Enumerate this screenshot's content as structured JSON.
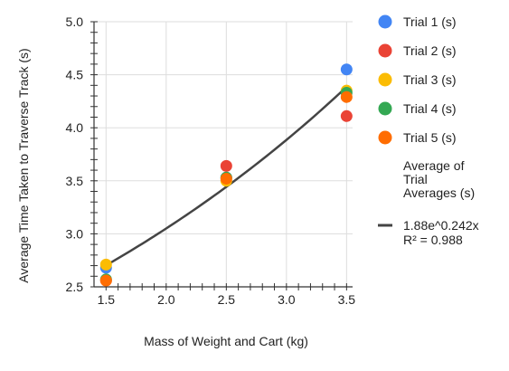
{
  "chart_data": {
    "type": "scatter",
    "title": "",
    "xlabel": "Mass of Weight and Cart (kg)",
    "ylabel": "Average Time Taken to Traverse Track (s)",
    "xlim": [
      1.4,
      3.55
    ],
    "ylim": [
      2.5,
      5.0
    ],
    "x_ticks": [
      "1.5",
      "2.0",
      "2.5",
      "3.0",
      "3.5"
    ],
    "y_ticks": [
      "2.5",
      "3.0",
      "3.5",
      "4.0",
      "4.5",
      "5.0"
    ],
    "grid": true,
    "legend_position": "right",
    "series": [
      {
        "name": "Trial 1 (s)",
        "color": "#4285F4",
        "points": [
          [
            1.5,
            2.68
          ],
          [
            2.5,
            3.53
          ],
          [
            3.5,
            4.55
          ]
        ]
      },
      {
        "name": "Trial 2 (s)",
        "color": "#EA4335",
        "points": [
          [
            1.5,
            2.56
          ],
          [
            2.5,
            3.64
          ],
          [
            3.5,
            4.11
          ]
        ]
      },
      {
        "name": "Trial 3 (s)",
        "color": "#FBBC04",
        "points": [
          [
            1.5,
            2.71
          ],
          [
            2.5,
            3.5
          ],
          [
            3.5,
            4.35
          ]
        ]
      },
      {
        "name": "Trial 4 (s)",
        "color": "#34A853",
        "points": [
          [
            1.5,
            2.57
          ],
          [
            2.5,
            3.53
          ],
          [
            3.5,
            4.33
          ]
        ]
      },
      {
        "name": "Trial 5 (s)",
        "color": "#FF6D01",
        "points": [
          [
            1.5,
            2.56
          ],
          [
            2.5,
            3.52
          ],
          [
            3.5,
            4.29
          ]
        ]
      }
    ],
    "trendline": {
      "legend_name": "Average of Trial Averages (s)",
      "equation": "1.88e^0.242x",
      "r_squared": "R² = 0.988",
      "a": 1.88,
      "b": 0.242,
      "x_range": [
        1.5,
        3.5
      ],
      "color": "#444444"
    }
  }
}
